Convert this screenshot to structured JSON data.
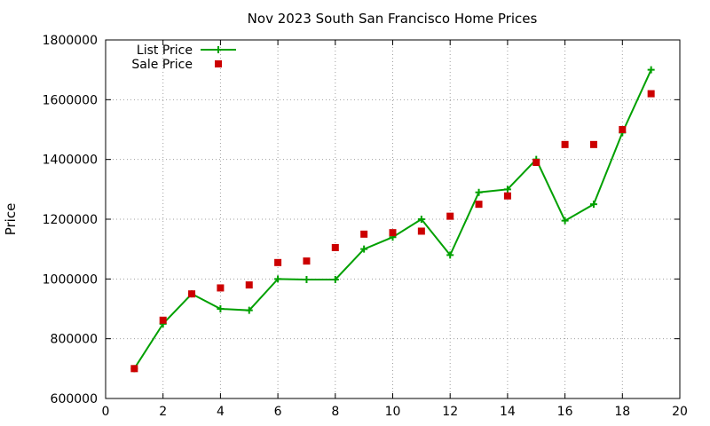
{
  "chart_data": {
    "type": "line",
    "title": "Nov 2023 South San Francisco Home Prices",
    "xlabel": "",
    "ylabel": "Price",
    "xlim": [
      0,
      20
    ],
    "ylim": [
      600000,
      1800000
    ],
    "x_ticks": [
      0,
      2,
      4,
      6,
      8,
      10,
      12,
      14,
      16,
      18,
      20
    ],
    "y_ticks": [
      600000,
      800000,
      1000000,
      1200000,
      1400000,
      1600000,
      1800000
    ],
    "grid": true,
    "legend_position": "top-left",
    "series": [
      {
        "name": "List Price",
        "style": "linespoints",
        "marker": "plus",
        "color": "#00a000",
        "x": [
          1,
          2,
          3,
          4,
          5,
          6,
          7,
          8,
          9,
          10,
          11,
          12,
          13,
          14,
          15,
          16,
          17,
          18,
          19
        ],
        "values": [
          700000,
          850000,
          950000,
          900000,
          895000,
          1000000,
          998000,
          998000,
          1100000,
          1140000,
          1200000,
          1080000,
          1290000,
          1300000,
          1400000,
          1195000,
          1250000,
          1490000,
          1700000
        ]
      },
      {
        "name": "Sale Price",
        "style": "points",
        "marker": "square",
        "color": "#cc0000",
        "x": [
          1,
          2,
          3,
          4,
          5,
          6,
          7,
          8,
          9,
          10,
          11,
          12,
          13,
          14,
          15,
          16,
          17,
          18,
          19
        ],
        "values": [
          700000,
          862000,
          950000,
          970000,
          980000,
          1055000,
          1060000,
          1105000,
          1150000,
          1155000,
          1160000,
          1210000,
          1250000,
          1278000,
          1390000,
          1450000,
          1450000,
          1500000,
          1620000
        ]
      }
    ]
  }
}
